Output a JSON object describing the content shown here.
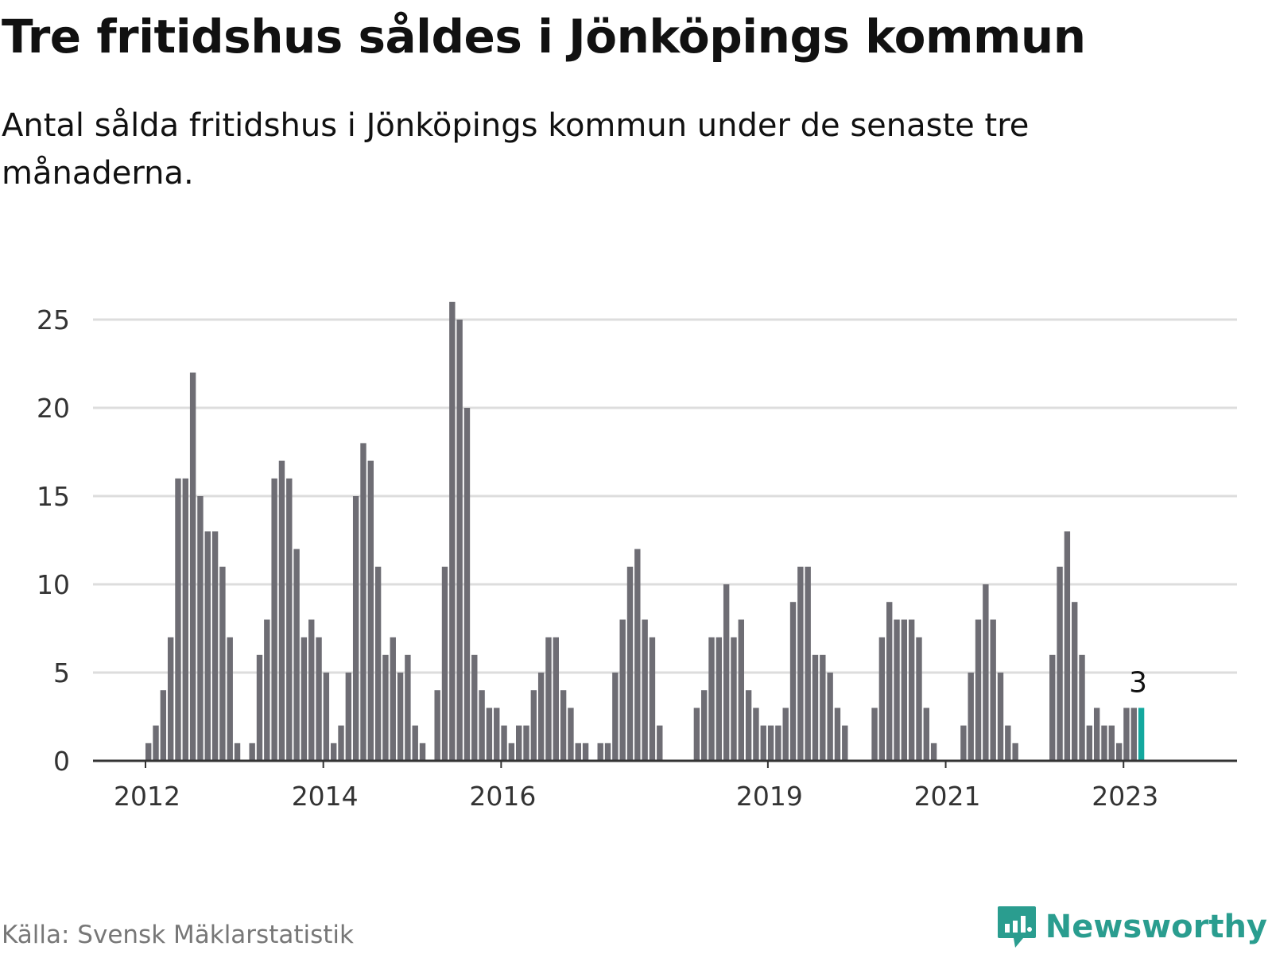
{
  "title": "Tre fritidshus såldes i Jönköpings kommun",
  "subtitle": "Antal sålda fritidshus i Jönköpings kommun under de senaste tre månaderna.",
  "source": "Källa: Svensk Mäklarstatistik",
  "brand": {
    "name": "Newsworthy",
    "icon": "newsworthy-logo-icon",
    "color": "#2a9d8f"
  },
  "colors": {
    "bar": "#6e6d74",
    "highlight": "#13a89e",
    "grid": "#dddddd",
    "axis": "#333333"
  },
  "chart_data": {
    "type": "bar",
    "title": "Tre fritidshus såldes i Jönköpings kommun",
    "subtitle": "Antal sålda fritidshus i Jönköpings kommun under de senaste tre månaderna.",
    "xlabel": "",
    "ylabel": "",
    "ylim": [
      0,
      26
    ],
    "yticks": [
      0,
      5,
      10,
      15,
      20,
      25
    ],
    "xticks": [
      {
        "label": "2012",
        "month_index": 0
      },
      {
        "label": "2014",
        "month_index": 24
      },
      {
        "label": "2016",
        "month_index": 48
      },
      {
        "label": "2019",
        "month_index": 84
      },
      {
        "label": "2021",
        "month_index": 108
      },
      {
        "label": "2023",
        "month_index": 132
      }
    ],
    "grid": true,
    "legend": "none",
    "highlight": {
      "last_n": 1,
      "label": "3"
    },
    "months": [
      "2012-01",
      "2012-02",
      "2012-03",
      "2012-04",
      "2012-05",
      "2012-06",
      "2012-07",
      "2012-08",
      "2012-09",
      "2012-10",
      "2012-11",
      "2012-12",
      "2013-01",
      "2013-02",
      "2013-03",
      "2013-04",
      "2013-05",
      "2013-06",
      "2013-07",
      "2013-08",
      "2013-09",
      "2013-10",
      "2013-11",
      "2013-12",
      "2014-01",
      "2014-02",
      "2014-03",
      "2014-04",
      "2014-05",
      "2014-06",
      "2014-07",
      "2014-08",
      "2014-09",
      "2014-10",
      "2014-11",
      "2014-12",
      "2015-01",
      "2015-02",
      "2015-03",
      "2015-04",
      "2015-05",
      "2015-06",
      "2015-07",
      "2015-08",
      "2015-09",
      "2015-10",
      "2015-11",
      "2015-12",
      "2016-01",
      "2016-02",
      "2016-03",
      "2016-04",
      "2016-05",
      "2016-06",
      "2016-07",
      "2016-08",
      "2016-09",
      "2016-10",
      "2016-11",
      "2016-12",
      "2017-01",
      "2017-02",
      "2017-03",
      "2017-04",
      "2017-05",
      "2017-06",
      "2017-07",
      "2017-08",
      "2017-09",
      "2017-10",
      "2017-11",
      "2017-12",
      "2018-01",
      "2018-02",
      "2018-03",
      "2018-04",
      "2018-05",
      "2018-06",
      "2018-07",
      "2018-08",
      "2018-09",
      "2018-10",
      "2018-11",
      "2018-12",
      "2019-01",
      "2019-02",
      "2019-03",
      "2019-04",
      "2019-05",
      "2019-06",
      "2019-07",
      "2019-08",
      "2019-09",
      "2019-10",
      "2019-11",
      "2019-12",
      "2020-01",
      "2020-02",
      "2020-03",
      "2020-04",
      "2020-05",
      "2020-06",
      "2020-07",
      "2020-08",
      "2020-09",
      "2020-10",
      "2020-11",
      "2020-12",
      "2021-01",
      "2021-02",
      "2021-03",
      "2021-04",
      "2021-05",
      "2021-06",
      "2021-07",
      "2021-08",
      "2021-09",
      "2021-10",
      "2021-11",
      "2021-12",
      "2022-01",
      "2022-02",
      "2022-03",
      "2022-04",
      "2022-05",
      "2022-06",
      "2022-07",
      "2022-08",
      "2022-09",
      "2022-10",
      "2022-11",
      "2022-12",
      "2023-01",
      "2023-02",
      "2023-03"
    ],
    "values": [
      1,
      2,
      4,
      7,
      16,
      16,
      22,
      15,
      13,
      13,
      11,
      7,
      1,
      0,
      1,
      6,
      8,
      16,
      17,
      16,
      12,
      7,
      8,
      7,
      5,
      1,
      2,
      5,
      15,
      18,
      17,
      11,
      6,
      7,
      5,
      6,
      2,
      1,
      0,
      4,
      11,
      26,
      25,
      20,
      6,
      4,
      3,
      3,
      2,
      1,
      2,
      2,
      4,
      5,
      7,
      7,
      4,
      3,
      1,
      1,
      0,
      1,
      1,
      5,
      8,
      11,
      12,
      8,
      7,
      2,
      0,
      0,
      0,
      0,
      3,
      4,
      7,
      7,
      10,
      7,
      8,
      4,
      3,
      2,
      2,
      2,
      3,
      9,
      11,
      11,
      6,
      6,
      5,
      3,
      2,
      0,
      0,
      0,
      3,
      7,
      9,
      8,
      8,
      8,
      7,
      3,
      1,
      0,
      0,
      0,
      2,
      5,
      8,
      10,
      8,
      5,
      2,
      1,
      0,
      0,
      0,
      0,
      6,
      11,
      13,
      9,
      6,
      2,
      3,
      2,
      2,
      1,
      3,
      3,
      3
    ]
  }
}
